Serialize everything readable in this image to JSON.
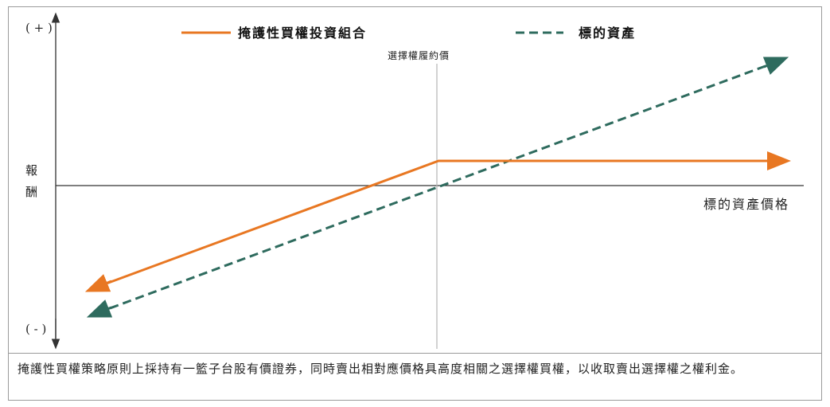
{
  "diagram": {
    "y_axis_plus": "( + )",
    "y_axis_minus": "( - )",
    "y_axis_label_line1": "報",
    "y_axis_label_line2": "酬",
    "x_axis_label": "標的資產價格",
    "strike_label": "選擇權履約價",
    "legend": [
      {
        "label": "掩護性買權投資組合",
        "color": "#e87722",
        "style": "solid"
      },
      {
        "label": "標的資產",
        "color": "#2e6b5e",
        "style": "dashed"
      }
    ]
  },
  "caption": {
    "text": "掩護性買權策略原則上採持有一籃子台股有價證券，同時賣出相對應價格具高度相關之選擇權買權，以收取賣出選擇權之權利金。"
  }
}
